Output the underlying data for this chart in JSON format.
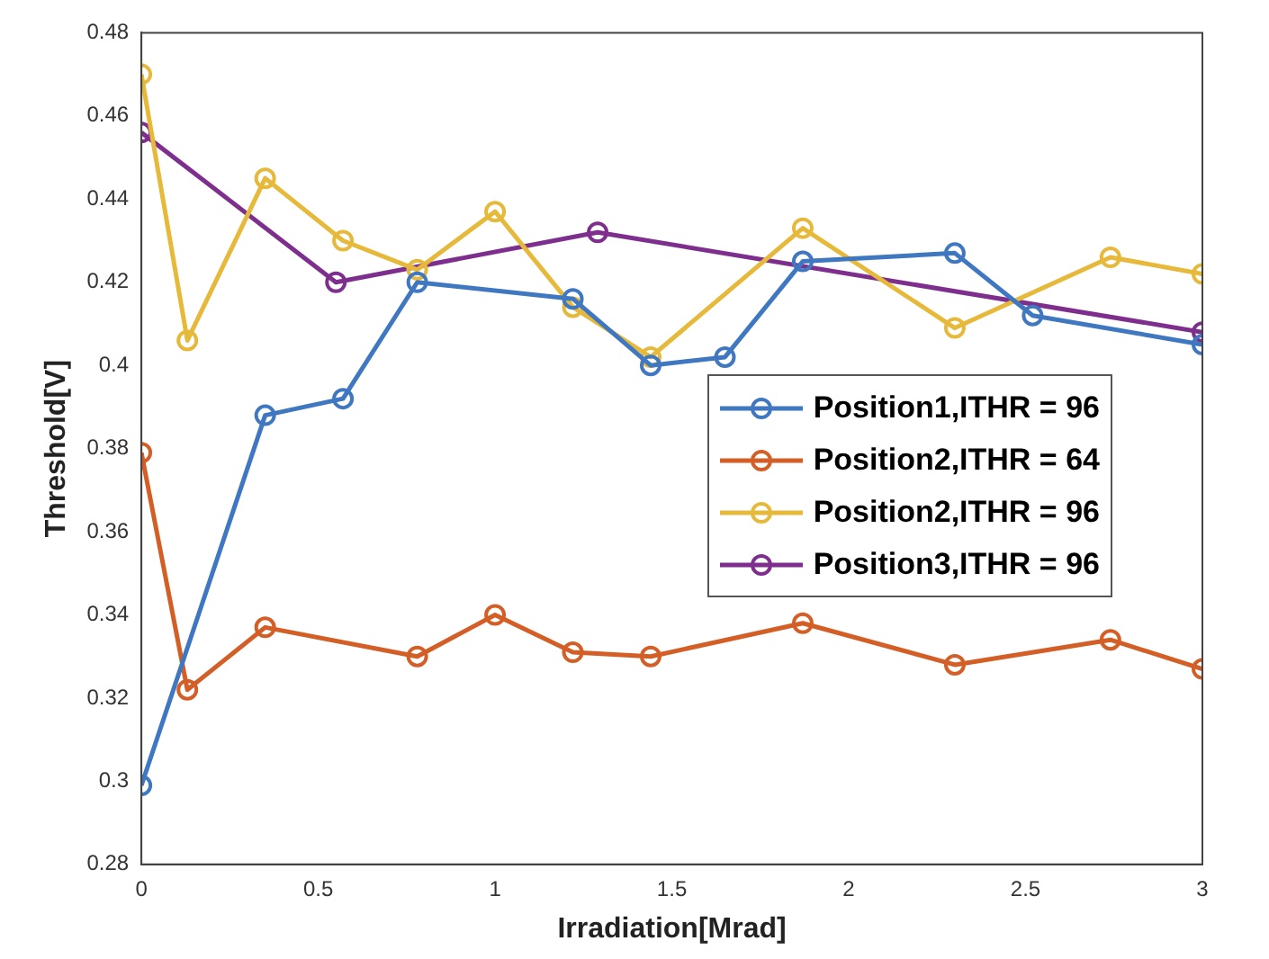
{
  "chart_data": {
    "type": "line",
    "xlabel": "Irradiation[Mrad]",
    "ylabel": "Threshold[V]",
    "xlim": [
      0,
      3
    ],
    "xticks": [
      0,
      0.5,
      1,
      1.5,
      2,
      2.5,
      3
    ],
    "ylim": [
      0.28,
      0.48
    ],
    "yticks": [
      0.28,
      0.3,
      0.32,
      0.34,
      0.36,
      0.38,
      0.4,
      0.42,
      0.44,
      0.46,
      0.48
    ],
    "grid": false,
    "legend": "right",
    "marker": "circle",
    "line_style": "solid",
    "series": [
      {
        "name": "Position1,ITHR = 96",
        "color": "#3f78c0",
        "x": [
          0,
          0.35,
          0.57,
          0.78,
          1.22,
          1.44,
          1.65,
          1.87,
          2.3,
          2.52,
          3
        ],
        "values": [
          0.299,
          0.388,
          0.392,
          0.42,
          0.416,
          0.4,
          0.402,
          0.425,
          0.427,
          0.412,
          0.405
        ]
      },
      {
        "name": "Position2,ITHR = 64",
        "color": "#d35f27",
        "x": [
          0,
          0.13,
          0.35,
          0.78,
          1,
          1.22,
          1.44,
          1.87,
          2.3,
          2.74,
          3
        ],
        "values": [
          0.379,
          0.322,
          0.337,
          0.33,
          0.34,
          0.331,
          0.33,
          0.338,
          0.328,
          0.334,
          0.327
        ]
      },
      {
        "name": "Position2,ITHR = 96",
        "color": "#e6b93a",
        "x": [
          0,
          0.13,
          0.35,
          0.57,
          0.78,
          1,
          1.22,
          1.44,
          1.87,
          2.3,
          2.74,
          3
        ],
        "values": [
          0.47,
          0.406,
          0.445,
          0.43,
          0.423,
          0.437,
          0.414,
          0.402,
          0.433,
          0.409,
          0.426,
          0.422
        ]
      },
      {
        "name": "Position3,ITHR = 96",
        "color": "#7e2f8e",
        "x": [
          0,
          0.55,
          1.29,
          3
        ],
        "values": [
          0.456,
          0.42,
          0.432,
          0.408
        ]
      }
    ]
  }
}
